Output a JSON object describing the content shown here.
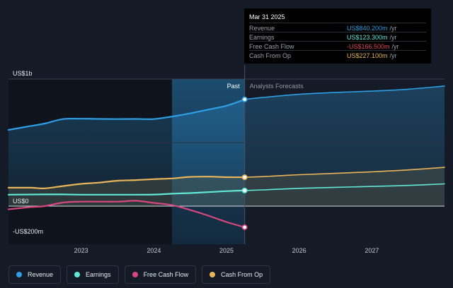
{
  "chart_data": {
    "type": "line",
    "y_labels": {
      "top": "US$1b",
      "zero": "US$0",
      "bottom": "-US$200m"
    },
    "ylim": [
      -300,
      1000
    ],
    "xlim": [
      2022.0,
      2028.0
    ],
    "x_ticks": [
      2023,
      2024,
      2025,
      2026,
      2027
    ],
    "x_tick_labels": [
      "2023",
      "2024",
      "2025",
      "2026",
      "2027"
    ],
    "past_label": "Past",
    "forecast_label": "Analysts Forecasts",
    "divider_x": 2025.25,
    "highlight_start_x": 2024.25,
    "series": [
      {
        "name": "Revenue",
        "key": "revenue",
        "color": "#2e9fe6",
        "past": [
          [
            2022.0,
            600
          ],
          [
            2022.3,
            630
          ],
          [
            2022.5,
            650
          ],
          [
            2022.75,
            685
          ],
          [
            2023.0,
            688
          ],
          [
            2023.25,
            686
          ],
          [
            2023.5,
            685
          ],
          [
            2023.75,
            686
          ],
          [
            2024.0,
            685
          ],
          [
            2024.25,
            705
          ],
          [
            2024.5,
            730
          ],
          [
            2024.75,
            760
          ],
          [
            2025.0,
            790
          ],
          [
            2025.25,
            840
          ]
        ],
        "forecast": [
          [
            2025.25,
            840
          ],
          [
            2025.5,
            855
          ],
          [
            2026.0,
            880
          ],
          [
            2026.5,
            895
          ],
          [
            2027.0,
            905
          ],
          [
            2027.5,
            920
          ],
          [
            2028.0,
            945
          ]
        ]
      },
      {
        "name": "Earnings",
        "key": "earnings",
        "color": "#62e8d6",
        "past": [
          [
            2022.0,
            90
          ],
          [
            2022.5,
            92
          ],
          [
            2022.75,
            92
          ],
          [
            2023.0,
            90
          ],
          [
            2023.5,
            90
          ],
          [
            2024.0,
            91
          ],
          [
            2024.25,
            98
          ],
          [
            2024.5,
            103
          ],
          [
            2024.75,
            110
          ],
          [
            2025.0,
            118
          ],
          [
            2025.25,
            123
          ]
        ],
        "forecast": [
          [
            2025.25,
            123
          ],
          [
            2025.5,
            128
          ],
          [
            2026.0,
            140
          ],
          [
            2026.5,
            148
          ],
          [
            2027.0,
            155
          ],
          [
            2027.5,
            163
          ],
          [
            2028.0,
            175
          ]
        ]
      },
      {
        "name": "Free Cash Flow",
        "key": "fcf",
        "color": "#d6477f",
        "past": [
          [
            2022.0,
            -25
          ],
          [
            2022.3,
            -8
          ],
          [
            2022.5,
            0
          ],
          [
            2022.75,
            28
          ],
          [
            2023.0,
            35
          ],
          [
            2023.5,
            35
          ],
          [
            2023.75,
            42
          ],
          [
            2024.0,
            25
          ],
          [
            2024.25,
            8
          ],
          [
            2024.5,
            -30
          ],
          [
            2024.75,
            -75
          ],
          [
            2025.0,
            -125
          ],
          [
            2025.25,
            -166.5
          ]
        ],
        "forecast": []
      },
      {
        "name": "Cash From Op",
        "key": "cfo",
        "color": "#e8b55a",
        "past": [
          [
            2022.0,
            145
          ],
          [
            2022.3,
            145
          ],
          [
            2022.5,
            140
          ],
          [
            2022.75,
            158
          ],
          [
            2023.0,
            175
          ],
          [
            2023.25,
            185
          ],
          [
            2023.5,
            200
          ],
          [
            2023.75,
            205
          ],
          [
            2024.0,
            212
          ],
          [
            2024.25,
            218
          ],
          [
            2024.5,
            230
          ],
          [
            2024.75,
            232
          ],
          [
            2025.0,
            228
          ],
          [
            2025.25,
            227.1
          ]
        ],
        "forecast": [
          [
            2025.25,
            227.1
          ],
          [
            2025.5,
            232
          ],
          [
            2026.0,
            247
          ],
          [
            2026.5,
            258
          ],
          [
            2027.0,
            270
          ],
          [
            2027.5,
            285
          ],
          [
            2028.0,
            305
          ]
        ]
      }
    ]
  },
  "tooltip": {
    "date": "Mar 31 2025",
    "unit": "/yr",
    "rows": [
      {
        "label": "Revenue",
        "value": "US$840.200m",
        "color": "#2e9fe6"
      },
      {
        "label": "Earnings",
        "value": "US$123.300m",
        "color": "#62e8d6"
      },
      {
        "label": "Free Cash Flow",
        "value": "-US$166.500m",
        "color": "#e0455a"
      },
      {
        "label": "Cash From Op",
        "value": "US$227.100m",
        "color": "#e8b55a"
      }
    ]
  },
  "legend": [
    {
      "label": "Revenue",
      "color": "#2e9fe6"
    },
    {
      "label": "Earnings",
      "color": "#62e8d6"
    },
    {
      "label": "Free Cash Flow",
      "color": "#d6477f"
    },
    {
      "label": "Cash From Op",
      "color": "#e8b55a"
    }
  ]
}
